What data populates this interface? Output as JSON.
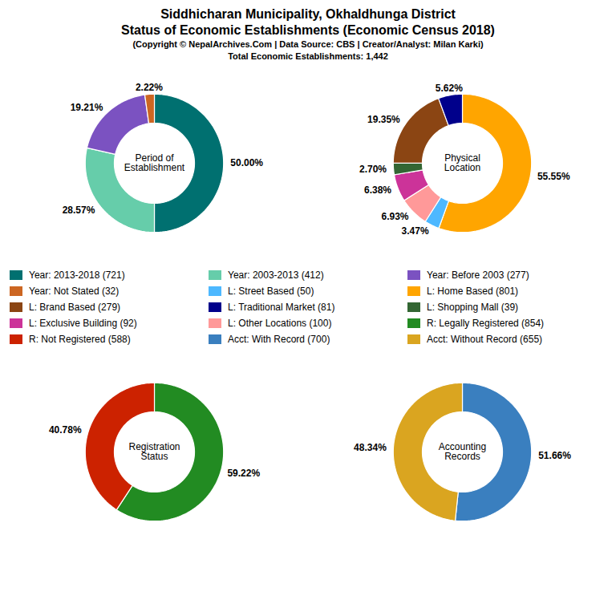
{
  "title": "Siddhicharan Municipality, Okhaldhunga District\nStatus of Economic Establishments (Economic Census 2018)",
  "subtitle": "(Copyright © NepalArchives.Com | Data Source: CBS | Creator/Analyst: Milan Karki)\nTotal Economic Establishments: 1,442",
  "legend_items": [
    {
      "name": "Year: 2013-2018 (721)",
      "color": "#007070"
    },
    {
      "name": "Year: 2003-2013 (412)",
      "color": "#66CDAA"
    },
    {
      "name": "Year: Before 2003 (277)",
      "color": "#7B52C1"
    },
    {
      "name": "Year: Not Stated (32)",
      "color": "#CC6622"
    },
    {
      "name": "L: Street Based (50)",
      "color": "#4DB8FF"
    },
    {
      "name": "L: Home Based (801)",
      "color": "#FFA500"
    },
    {
      "name": "L: Brand Based (279)",
      "color": "#8B4513"
    },
    {
      "name": "L: Traditional Market (81)",
      "color": "#00008B"
    },
    {
      "name": "L: Shopping Mall (39)",
      "color": "#336633"
    },
    {
      "name": "L: Exclusive Building (92)",
      "color": "#CC3399"
    },
    {
      "name": "L: Other Locations (100)",
      "color": "#FF9999"
    },
    {
      "name": "R: Legally Registered (854)",
      "color": "#228B22"
    },
    {
      "name": "R: Not Registered (588)",
      "color": "#CC2200"
    },
    {
      "name": "Acct: With Record (700)",
      "color": "#3A7FBF"
    },
    {
      "name": "Acct: Without Record (655)",
      "color": "#DAA520"
    }
  ],
  "chart_data": [
    {
      "type": "pie",
      "title": "Period of\nEstablishment",
      "categories": [
        "Year: 2013-2018 (721)",
        "Year: 2003-2013 (412)",
        "Year: Before 2003 (277)",
        "Year: Not Stated (32)"
      ],
      "values": [
        50.0,
        28.57,
        19.21,
        2.22
      ],
      "value_labels": [
        "50.00%",
        "28.57%",
        "19.21%",
        "2.22%"
      ],
      "colors": [
        "#007070",
        "#66CDAA",
        "#7B52C1",
        "#CC6622"
      ],
      "data_labels": true
    },
    {
      "type": "pie",
      "title": "Physical\nLocation",
      "categories": [
        "L: Home Based (801)",
        "L: Street Based (50)",
        "L: Other Locations (100)",
        "L: Exclusive Building (92)",
        "L: Shopping Mall (39)",
        "L: Brand Based (279)",
        "L: Traditional Market (81)"
      ],
      "values": [
        55.55,
        3.47,
        6.93,
        6.38,
        2.7,
        19.35,
        5.62
      ],
      "value_labels": [
        "55.55%",
        "3.47%",
        "6.93%",
        "6.38%",
        "2.70%",
        "19.35%",
        "5.62%"
      ],
      "colors": [
        "#FFA500",
        "#4DB8FF",
        "#FF9999",
        "#CC3399",
        "#336633",
        "#8B4513",
        "#00008B"
      ],
      "data_labels": true
    },
    {
      "type": "pie",
      "title": "Registration\nStatus",
      "categories": [
        "R: Legally Registered (854)",
        "R: Not Registered (588)"
      ],
      "values": [
        59.22,
        40.78
      ],
      "value_labels": [
        "59.22%",
        "40.78%"
      ],
      "colors": [
        "#228B22",
        "#CC2200"
      ],
      "data_labels": true
    },
    {
      "type": "pie",
      "title": "Accounting\nRecords",
      "categories": [
        "Acct: With Record (700)",
        "Acct: Without Record (655)"
      ],
      "values": [
        51.66,
        48.34
      ],
      "value_labels": [
        "51.66%",
        "48.34%"
      ],
      "colors": [
        "#3A7FBF",
        "#DAA520"
      ],
      "data_labels": true
    }
  ]
}
